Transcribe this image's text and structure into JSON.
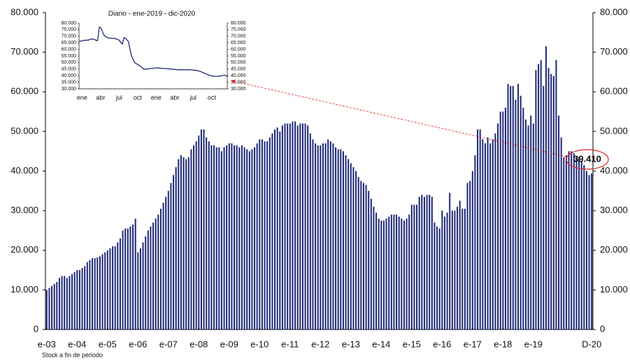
{
  "chart_data": [
    {
      "type": "bar",
      "categories": [
        "e-03",
        null,
        null,
        null,
        null,
        null,
        null,
        null,
        null,
        null,
        null,
        null,
        "e-04",
        null,
        null,
        null,
        null,
        null,
        null,
        null,
        null,
        null,
        null,
        null,
        "e-05",
        null,
        null,
        null,
        null,
        null,
        null,
        null,
        null,
        null,
        null,
        null,
        "e-06",
        null,
        null,
        null,
        null,
        null,
        null,
        null,
        null,
        null,
        null,
        null,
        "e-07",
        null,
        null,
        null,
        null,
        null,
        null,
        null,
        null,
        null,
        null,
        null,
        "e-08",
        null,
        null,
        null,
        null,
        null,
        null,
        null,
        null,
        null,
        null,
        null,
        "e-09",
        null,
        null,
        null,
        null,
        null,
        null,
        null,
        null,
        null,
        null,
        null,
        "e-10",
        null,
        null,
        null,
        null,
        null,
        null,
        null,
        null,
        null,
        null,
        null,
        "e-11",
        null,
        null,
        null,
        null,
        null,
        null,
        null,
        null,
        null,
        null,
        null,
        "e-12",
        null,
        null,
        null,
        null,
        null,
        null,
        null,
        null,
        null,
        null,
        null,
        "e-13",
        null,
        null,
        null,
        null,
        null,
        null,
        null,
        null,
        null,
        null,
        null,
        "e-14",
        null,
        null,
        null,
        null,
        null,
        null,
        null,
        null,
        null,
        null,
        null,
        "e-15",
        null,
        null,
        null,
        null,
        null,
        null,
        null,
        null,
        null,
        null,
        null,
        "e-16",
        null,
        null,
        null,
        null,
        null,
        null,
        null,
        null,
        null,
        null,
        null,
        "e-17",
        null,
        null,
        null,
        null,
        null,
        null,
        null,
        null,
        null,
        null,
        null,
        "e-18",
        null,
        null,
        null,
        null,
        null,
        null,
        null,
        null,
        null,
        null,
        null,
        "e-19",
        null,
        null,
        null,
        null,
        null,
        null,
        null,
        null,
        null,
        null,
        null,
        null,
        null,
        null,
        null,
        null,
        null,
        null,
        null,
        null,
        null,
        null,
        "D-20"
      ],
      "values": [
        10000,
        10500,
        11000,
        11500,
        12000,
        13000,
        13500,
        13500,
        13000,
        13500,
        14000,
        14500,
        15000,
        15000,
        15500,
        16000,
        17000,
        17500,
        18000,
        18000,
        18200,
        18500,
        19000,
        19500,
        20000,
        20500,
        21000,
        21000,
        22000,
        23000,
        25000,
        25500,
        25500,
        26000,
        26500,
        28000,
        19500,
        20500,
        22000,
        23500,
        25000,
        26000,
        27000,
        28000,
        29000,
        30500,
        32000,
        33500,
        35000,
        37000,
        39000,
        41000,
        43000,
        44000,
        43500,
        43000,
        43500,
        45500,
        46500,
        47500,
        49000,
        50500,
        50500,
        48500,
        47500,
        46500,
        46500,
        46000,
        46000,
        45000,
        46000,
        46500,
        47000,
        47000,
        46500,
        46500,
        46000,
        46500,
        46000,
        45500,
        45000,
        45500,
        46000,
        47000,
        48000,
        48000,
        47500,
        47500,
        48500,
        49500,
        50500,
        51000,
        50000,
        51500,
        52000,
        52000,
        52000,
        52500,
        52500,
        51500,
        52000,
        52000,
        52000,
        51500,
        49500,
        48000,
        47000,
        46500,
        46500,
        47000,
        47000,
        48000,
        47500,
        47000,
        46000,
        45500,
        45500,
        45000,
        44000,
        43000,
        42000,
        41000,
        40000,
        38500,
        37500,
        37000,
        36500,
        35000,
        33000,
        31000,
        29500,
        28000,
        27500,
        27500,
        28000,
        28500,
        29000,
        29000,
        29000,
        28500,
        28000,
        27500,
        28000,
        29000,
        31500,
        31500,
        31500,
        33500,
        34000,
        33500,
        34000,
        34000,
        33500,
        27000,
        26000,
        25500,
        30000,
        28500,
        29500,
        34500,
        30000,
        30000,
        31000,
        32500,
        30500,
        30500,
        37000,
        37500,
        40000,
        44000,
        50500,
        50500,
        48000,
        47000,
        48500,
        47000,
        48000,
        49500,
        52000,
        55000,
        55000,
        56000,
        62000,
        61500,
        61500,
        58000,
        62000,
        59000,
        56000,
        53000,
        51500,
        54000,
        52000,
        65500,
        67000,
        68000,
        61500,
        71500,
        66000,
        64500,
        64000,
        68000,
        54000,
        48500,
        43500,
        44000,
        45000,
        45000,
        44500,
        43500,
        43500,
        42500,
        41500,
        40000,
        39000,
        39410
      ],
      "value_labels": [
        null,
        null,
        null,
        null,
        null,
        null,
        null,
        null,
        null,
        null,
        null,
        null,
        null,
        null,
        null,
        null,
        null,
        null,
        null,
        null,
        null,
        null,
        null,
        null,
        null,
        null,
        null,
        null,
        null,
        null,
        null,
        null,
        null,
        null,
        null,
        null,
        null,
        null,
        null,
        null,
        null,
        null,
        null,
        null,
        null,
        null,
        null,
        null,
        null,
        null,
        null,
        null,
        null,
        null,
        null,
        null,
        null,
        null,
        null,
        null,
        null,
        null,
        null,
        null,
        null,
        null,
        null,
        null,
        null,
        null,
        null,
        null,
        null,
        null,
        null,
        null,
        null,
        null,
        null,
        null,
        null,
        null,
        null,
        null,
        null,
        null,
        null,
        null,
        null,
        null,
        null,
        null,
        null,
        null,
        null,
        null,
        null,
        null,
        null,
        null,
        null,
        null,
        null,
        null,
        null,
        null,
        null,
        null,
        null,
        null,
        null,
        null,
        null,
        null,
        null,
        null,
        null,
        null,
        null,
        null,
        null,
        null,
        null,
        null,
        null,
        null,
        null,
        null,
        null,
        null,
        null,
        null,
        null,
        null,
        null,
        null,
        null,
        null,
        null,
        null,
        null,
        null,
        null,
        null,
        null,
        null,
        null,
        null,
        null,
        null,
        null,
        null,
        null,
        null,
        null,
        null,
        null,
        null,
        null,
        null,
        null,
        null,
        null,
        null,
        null,
        null,
        null,
        null,
        null,
        null,
        null,
        null,
        null,
        null,
        null,
        null,
        null,
        null,
        null,
        null,
        null,
        null,
        null,
        null,
        null,
        null,
        null,
        null,
        null,
        null,
        null,
        null,
        null,
        null,
        null,
        null,
        null,
        null,
        null,
        null,
        null,
        null,
        null,
        null,
        null,
        null,
        null,
        null,
        null,
        null,
        null,
        null,
        null,
        null,
        null,
        "39.410"
      ],
      "color": "#1f2a78",
      "ylim": [
        0,
        80000
      ],
      "yticks": [
        0,
        {
          "value": 10000,
          "label": "10.000"
        },
        {
          "value": 20000,
          "label": "20.000"
        },
        {
          "value": 30000,
          "label": "30.000"
        },
        {
          "value": 40000,
          "label": "40.000"
        },
        {
          "value": 50000,
          "label": "50.000"
        },
        {
          "value": 60000,
          "label": "60.000"
        },
        {
          "value": 70000,
          "label": "70.000"
        },
        {
          "value": 80000,
          "label": "80.000"
        }
      ],
      "annotation_color": "#e02020",
      "footnote": "Stock a fin de periodo"
    },
    {
      "type": "line",
      "title": "Diario - ene-2019 - dic-2020",
      "x": [
        0,
        0.5,
        1,
        1.5,
        2,
        2.5,
        3,
        3.3,
        3.6,
        4,
        4.5,
        5,
        5.5,
        6,
        6.5,
        7,
        7.3,
        7.6,
        8,
        8.5,
        9,
        9.5,
        10,
        10.5,
        11,
        11.5,
        12,
        12.5,
        13,
        13.5,
        14,
        14.5,
        15,
        15.5,
        16,
        16.5,
        17,
        17.5,
        18,
        18.5,
        19,
        19.5,
        20,
        20.5,
        21,
        21.5,
        22,
        22.5,
        23,
        23.5,
        24
      ],
      "values": [
        66,
        66.5,
        67,
        67,
        68,
        67.5,
        66.5,
        77,
        76,
        71,
        69,
        68.5,
        68.5,
        68,
        67,
        64,
        69,
        68,
        66,
        55,
        50,
        48.5,
        47,
        45,
        45,
        45.5,
        45.5,
        46,
        45.8,
        45.5,
        45.5,
        45.2,
        45,
        44.8,
        44.5,
        44.6,
        44.5,
        44.6,
        44.5,
        44.3,
        44,
        43.5,
        42.5,
        41.5,
        40.5,
        39.8,
        39.5,
        39.5,
        39.8,
        40.5,
        39.4
      ],
      "color": "#1f2a78",
      "xlim": [
        0,
        24
      ],
      "xticks": [
        {
          "value": 0.5,
          "label": "ene"
        },
        {
          "value": 3.5,
          "label": "abr"
        },
        {
          "value": 6.5,
          "label": "jul"
        },
        {
          "value": 9.5,
          "label": "oct"
        },
        {
          "value": 12.5,
          "label": "ene"
        },
        {
          "value": 15.5,
          "label": "abr"
        },
        {
          "value": 18.5,
          "label": "jul"
        },
        {
          "value": 21.5,
          "label": "oct"
        }
      ],
      "ylim": [
        30,
        80
      ],
      "yticks": [
        {
          "value": 30,
          "label": "30.000"
        },
        {
          "value": 35,
          "label": "35.000"
        },
        {
          "value": 40,
          "label": "40.000"
        },
        {
          "value": 45,
          "label": "45.000"
        },
        {
          "value": 50,
          "label": "50.000"
        },
        {
          "value": 55,
          "label": "55.000"
        },
        {
          "value": 60,
          "label": "60.000"
        },
        {
          "value": 65,
          "label": "65.000"
        },
        {
          "value": 70,
          "label": "70.000"
        },
        {
          "value": 75,
          "label": "75.000"
        },
        {
          "value": 80,
          "label": "80.000"
        }
      ]
    }
  ]
}
